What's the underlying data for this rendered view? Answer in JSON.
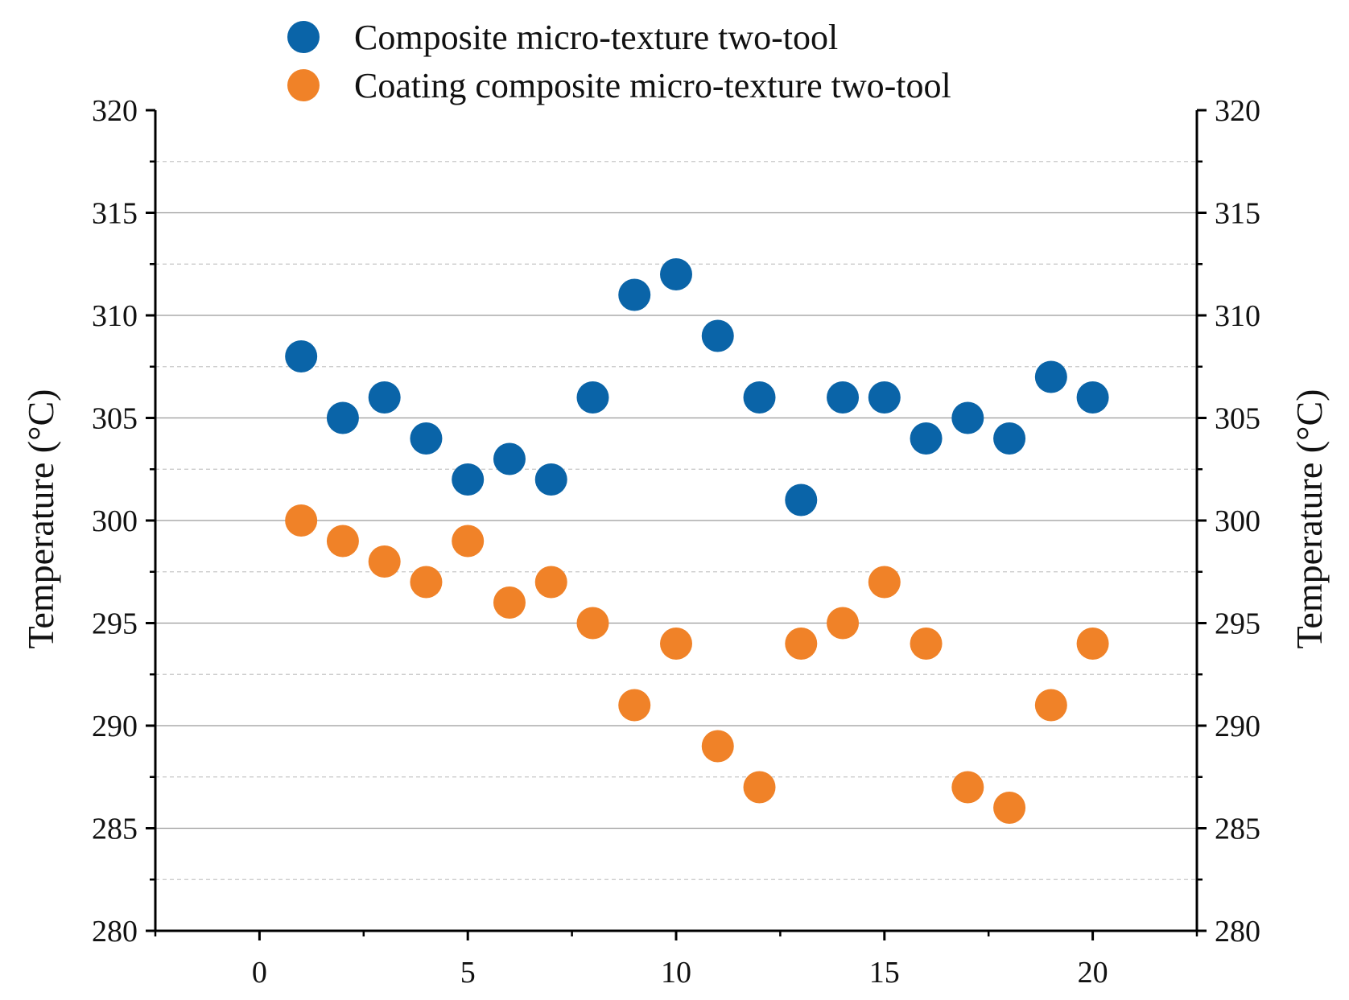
{
  "chart_data": {
    "type": "scatter",
    "title": "",
    "xlabel": "",
    "ylabel": "Temperature (°C)",
    "ylabel_right": "Temperature (°C)",
    "xlim": [
      -2.5,
      22.5
    ],
    "ylim": [
      280,
      320
    ],
    "x_ticks": [
      0,
      5,
      10,
      15,
      20
    ],
    "y_ticks": [
      280,
      285,
      290,
      295,
      300,
      305,
      310,
      315,
      320
    ],
    "x_tick_labels": [
      "0",
      "5",
      "10",
      "15",
      "20"
    ],
    "y_tick_labels": [
      "280",
      "285",
      "290",
      "295",
      "300",
      "305",
      "310",
      "315",
      "320"
    ],
    "grid": true,
    "legend_position": "top-center",
    "series": [
      {
        "name": "Composite micro-texture two-tool",
        "color": "#0a64a8",
        "x": [
          1,
          2,
          3,
          4,
          5,
          6,
          7,
          8,
          9,
          10,
          11,
          12,
          13,
          14,
          15,
          16,
          17,
          18,
          19,
          20
        ],
        "values": [
          308,
          305,
          306,
          304,
          302,
          303,
          302,
          306,
          311,
          312,
          309,
          306,
          301,
          306,
          306,
          304,
          305,
          304,
          307,
          306
        ]
      },
      {
        "name": "Coating composite micro-texture two-tool",
        "color": "#f08228",
        "x": [
          1,
          2,
          3,
          4,
          5,
          6,
          7,
          8,
          9,
          10,
          11,
          12,
          13,
          14,
          15,
          16,
          17,
          18,
          19,
          20
        ],
        "values": [
          300,
          299,
          298,
          297,
          299,
          296,
          297,
          295,
          291,
          294,
          289,
          287,
          294,
          295,
          297,
          294,
          287,
          286,
          291,
          294
        ]
      }
    ]
  }
}
